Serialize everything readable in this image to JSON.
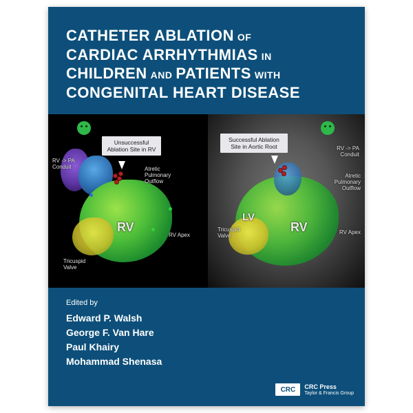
{
  "title": {
    "line1_a": "CATHETER ABLATION",
    "line1_b": "OF",
    "line2_a": "CARDIAC ARRHYTHMIAS",
    "line2_b": "IN",
    "line3_a": "CHILDREN",
    "line3_b": "AND",
    "line3_c": "PATIENTS",
    "line3_d": "WITH",
    "line4": "CONGENITAL HEART DISEASE"
  },
  "panel_left": {
    "callout": "Unsuccessful\nAblation Site in RV",
    "labels": {
      "conduit": "RV -> PA\nConduit",
      "outflow": "Atretic\nPulmonary\nOutflow",
      "rv": "RV",
      "apex": "RV Apex",
      "tv": "Tricuspid\nValve"
    }
  },
  "panel_right": {
    "callout": "Successful Ablation\nSite in Aortic Root",
    "labels": {
      "conduit": "RV -> PA\nConduit",
      "outflow": "Atretic\nPulmonary\nOutflow",
      "lv": "LV",
      "rv": "RV",
      "apex": "RV Apex",
      "tv": "Tricuspid\nValve"
    }
  },
  "editors": {
    "heading": "Edited by",
    "names": [
      "Edward P. Walsh",
      "George F. Van Hare",
      "Paul Khairy",
      "Mohammad Shenasa"
    ]
  },
  "publisher": {
    "logo": "CRC",
    "line1": "CRC Press",
    "line2": "Taylor & Francis Group"
  },
  "colors": {
    "cover_bg": "#0d4f7a",
    "text": "#ffffff",
    "callout_bg": "#e8e8ec"
  }
}
